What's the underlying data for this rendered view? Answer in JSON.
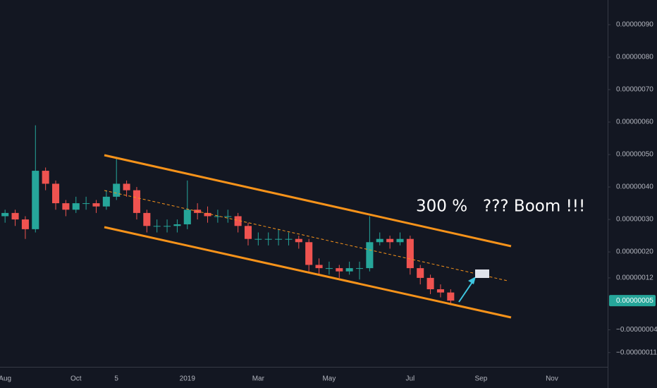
{
  "chart_data": {
    "type": "candlestick",
    "annotation": "300 %   ??? Boom !!!",
    "categories": [
      "Aug",
      null,
      null,
      null,
      null,
      null,
      null,
      "Oct",
      null,
      null,
      null,
      "5",
      null,
      null,
      null,
      null,
      null,
      null,
      "2019",
      null,
      null,
      null,
      null,
      null,
      null,
      "Mar",
      null,
      null,
      null,
      null,
      null,
      null,
      "May",
      null,
      null,
      null,
      null,
      null,
      null,
      null,
      "Jul",
      null,
      null,
      null,
      null,
      null,
      null,
      "Sep",
      null,
      null,
      null,
      null,
      null,
      null,
      "Nov",
      null,
      null,
      null,
      null,
      null
    ],
    "open": [
      3.1e-07,
      3.2e-07,
      3e-07,
      2.7e-07,
      4.5e-07,
      4.1e-07,
      3.5e-07,
      3.3e-07,
      3.5e-07,
      3.5e-07,
      3.4e-07,
      3.7e-07,
      4.1e-07,
      3.9e-07,
      3.2e-07,
      2.8e-07,
      2.8e-07,
      2.8e-07,
      2.85e-07,
      3.3e-07,
      3.2e-07,
      3.1e-07,
      3.1e-07,
      3.1e-07,
      2.8e-07,
      2.4e-07,
      2.4e-07,
      2.4e-07,
      2.4e-07,
      2.4e-07,
      2.3e-07,
      1.6e-07,
      1.5e-07,
      1.5e-07,
      1.4e-07,
      1.5e-07,
      1.5e-07,
      2.3e-07,
      2.4e-07,
      2.3e-07,
      2.4e-07,
      1.5e-07,
      1.2e-07,
      8.5e-08,
      7.5e-08,
      null,
      null,
      null,
      null,
      null,
      null,
      null,
      null,
      null,
      null,
      null,
      null,
      null,
      null,
      null
    ],
    "high": [
      3.3e-07,
      3.3e-07,
      3.1e-07,
      5.9e-07,
      4.6e-07,
      4.2e-07,
      3.6e-07,
      3.7e-07,
      3.7e-07,
      3.6e-07,
      3.9e-07,
      4.9e-07,
      4.2e-07,
      4e-07,
      3.3e-07,
      3e-07,
      3e-07,
      3e-07,
      4.2e-07,
      3.5e-07,
      3.4e-07,
      3.3e-07,
      3.3e-07,
      3.2e-07,
      2.9e-07,
      2.6e-07,
      2.6e-07,
      2.7e-07,
      2.6e-07,
      2.5e-07,
      2.4e-07,
      1.8e-07,
      1.7e-07,
      1.6e-07,
      1.7e-07,
      1.7e-07,
      3.1e-07,
      2.6e-07,
      2.5e-07,
      2.6e-07,
      2.5e-07,
      1.6e-07,
      1.3e-07,
      1e-07,
      8.5e-08,
      null,
      null,
      null,
      null,
      null,
      null,
      null,
      null,
      null,
      null,
      null,
      null,
      null,
      null,
      null
    ],
    "low": [
      2.9e-07,
      2.8e-07,
      2.4e-07,
      2.6e-07,
      3.9e-07,
      3.3e-07,
      3.1e-07,
      3.2e-07,
      3.3e-07,
      3.2e-07,
      3.3e-07,
      3.6e-07,
      3.7e-07,
      3e-07,
      2.6e-07,
      2.6e-07,
      2.6e-07,
      2.6e-07,
      2.7e-07,
      3e-07,
      2.9e-07,
      2.9e-07,
      2.9e-07,
      2.6e-07,
      2.2e-07,
      2.2e-07,
      2.2e-07,
      2.2e-07,
      2.2e-07,
      2.1e-07,
      1.4e-07,
      1.3e-07,
      1.3e-07,
      1.2e-07,
      1.3e-07,
      1.15e-07,
      1.4e-07,
      2.2e-07,
      2.1e-07,
      2.2e-07,
      1.3e-07,
      1e-07,
      7e-08,
      6e-08,
      4e-08,
      null,
      null,
      null,
      null,
      null,
      null,
      null,
      null,
      null,
      null,
      null,
      null,
      null,
      null,
      null
    ],
    "close": [
      3.2e-07,
      3e-07,
      2.7e-07,
      4.5e-07,
      4.1e-07,
      3.5e-07,
      3.3e-07,
      3.5e-07,
      3.5e-07,
      3.4e-07,
      3.7e-07,
      4.1e-07,
      3.9e-07,
      3.2e-07,
      2.8e-07,
      2.8e-07,
      2.8e-07,
      2.85e-07,
      3.3e-07,
      3.2e-07,
      3.1e-07,
      3.1e-07,
      3.1e-07,
      2.8e-07,
      2.4e-07,
      2.4e-07,
      2.4e-07,
      2.4e-07,
      2.4e-07,
      2.3e-07,
      1.6e-07,
      1.5e-07,
      1.5e-07,
      1.4e-07,
      1.5e-07,
      1.5e-07,
      2.3e-07,
      2.4e-07,
      2.3e-07,
      2.4e-07,
      1.5e-07,
      1.2e-07,
      8.5e-08,
      7.5e-08,
      5e-08,
      null,
      null,
      null,
      null,
      null,
      null,
      null,
      null,
      null,
      null,
      null,
      null,
      null,
      null,
      null
    ],
    "up_color": "#26a69a",
    "down_color": "#ef5350",
    "last_price": {
      "value": 5e-08,
      "label": "0.00000005"
    },
    "ylim": [
      -1.54e-07,
      9.76e-07
    ],
    "yticks": [
      {
        "value": 9e-07,
        "label": "0.00000090"
      },
      {
        "value": 8e-07,
        "label": "0.00000080"
      },
      {
        "value": 7e-07,
        "label": "0.00000070"
      },
      {
        "value": 6e-07,
        "label": "0.00000060"
      },
      {
        "value": 5e-07,
        "label": "0.00000050"
      },
      {
        "value": 4e-07,
        "label": "0.00000040"
      },
      {
        "value": 3e-07,
        "label": "0.00000030"
      },
      {
        "value": 2e-07,
        "label": "0.00000020"
      },
      {
        "value": 1.2e-07,
        "label": "0.00000012"
      },
      {
        "value": -4e-08,
        "label": "−0.00000004"
      },
      {
        "value": -1.1e-07,
        "label": "−0.00000011"
      }
    ],
    "grid": false
  }
}
